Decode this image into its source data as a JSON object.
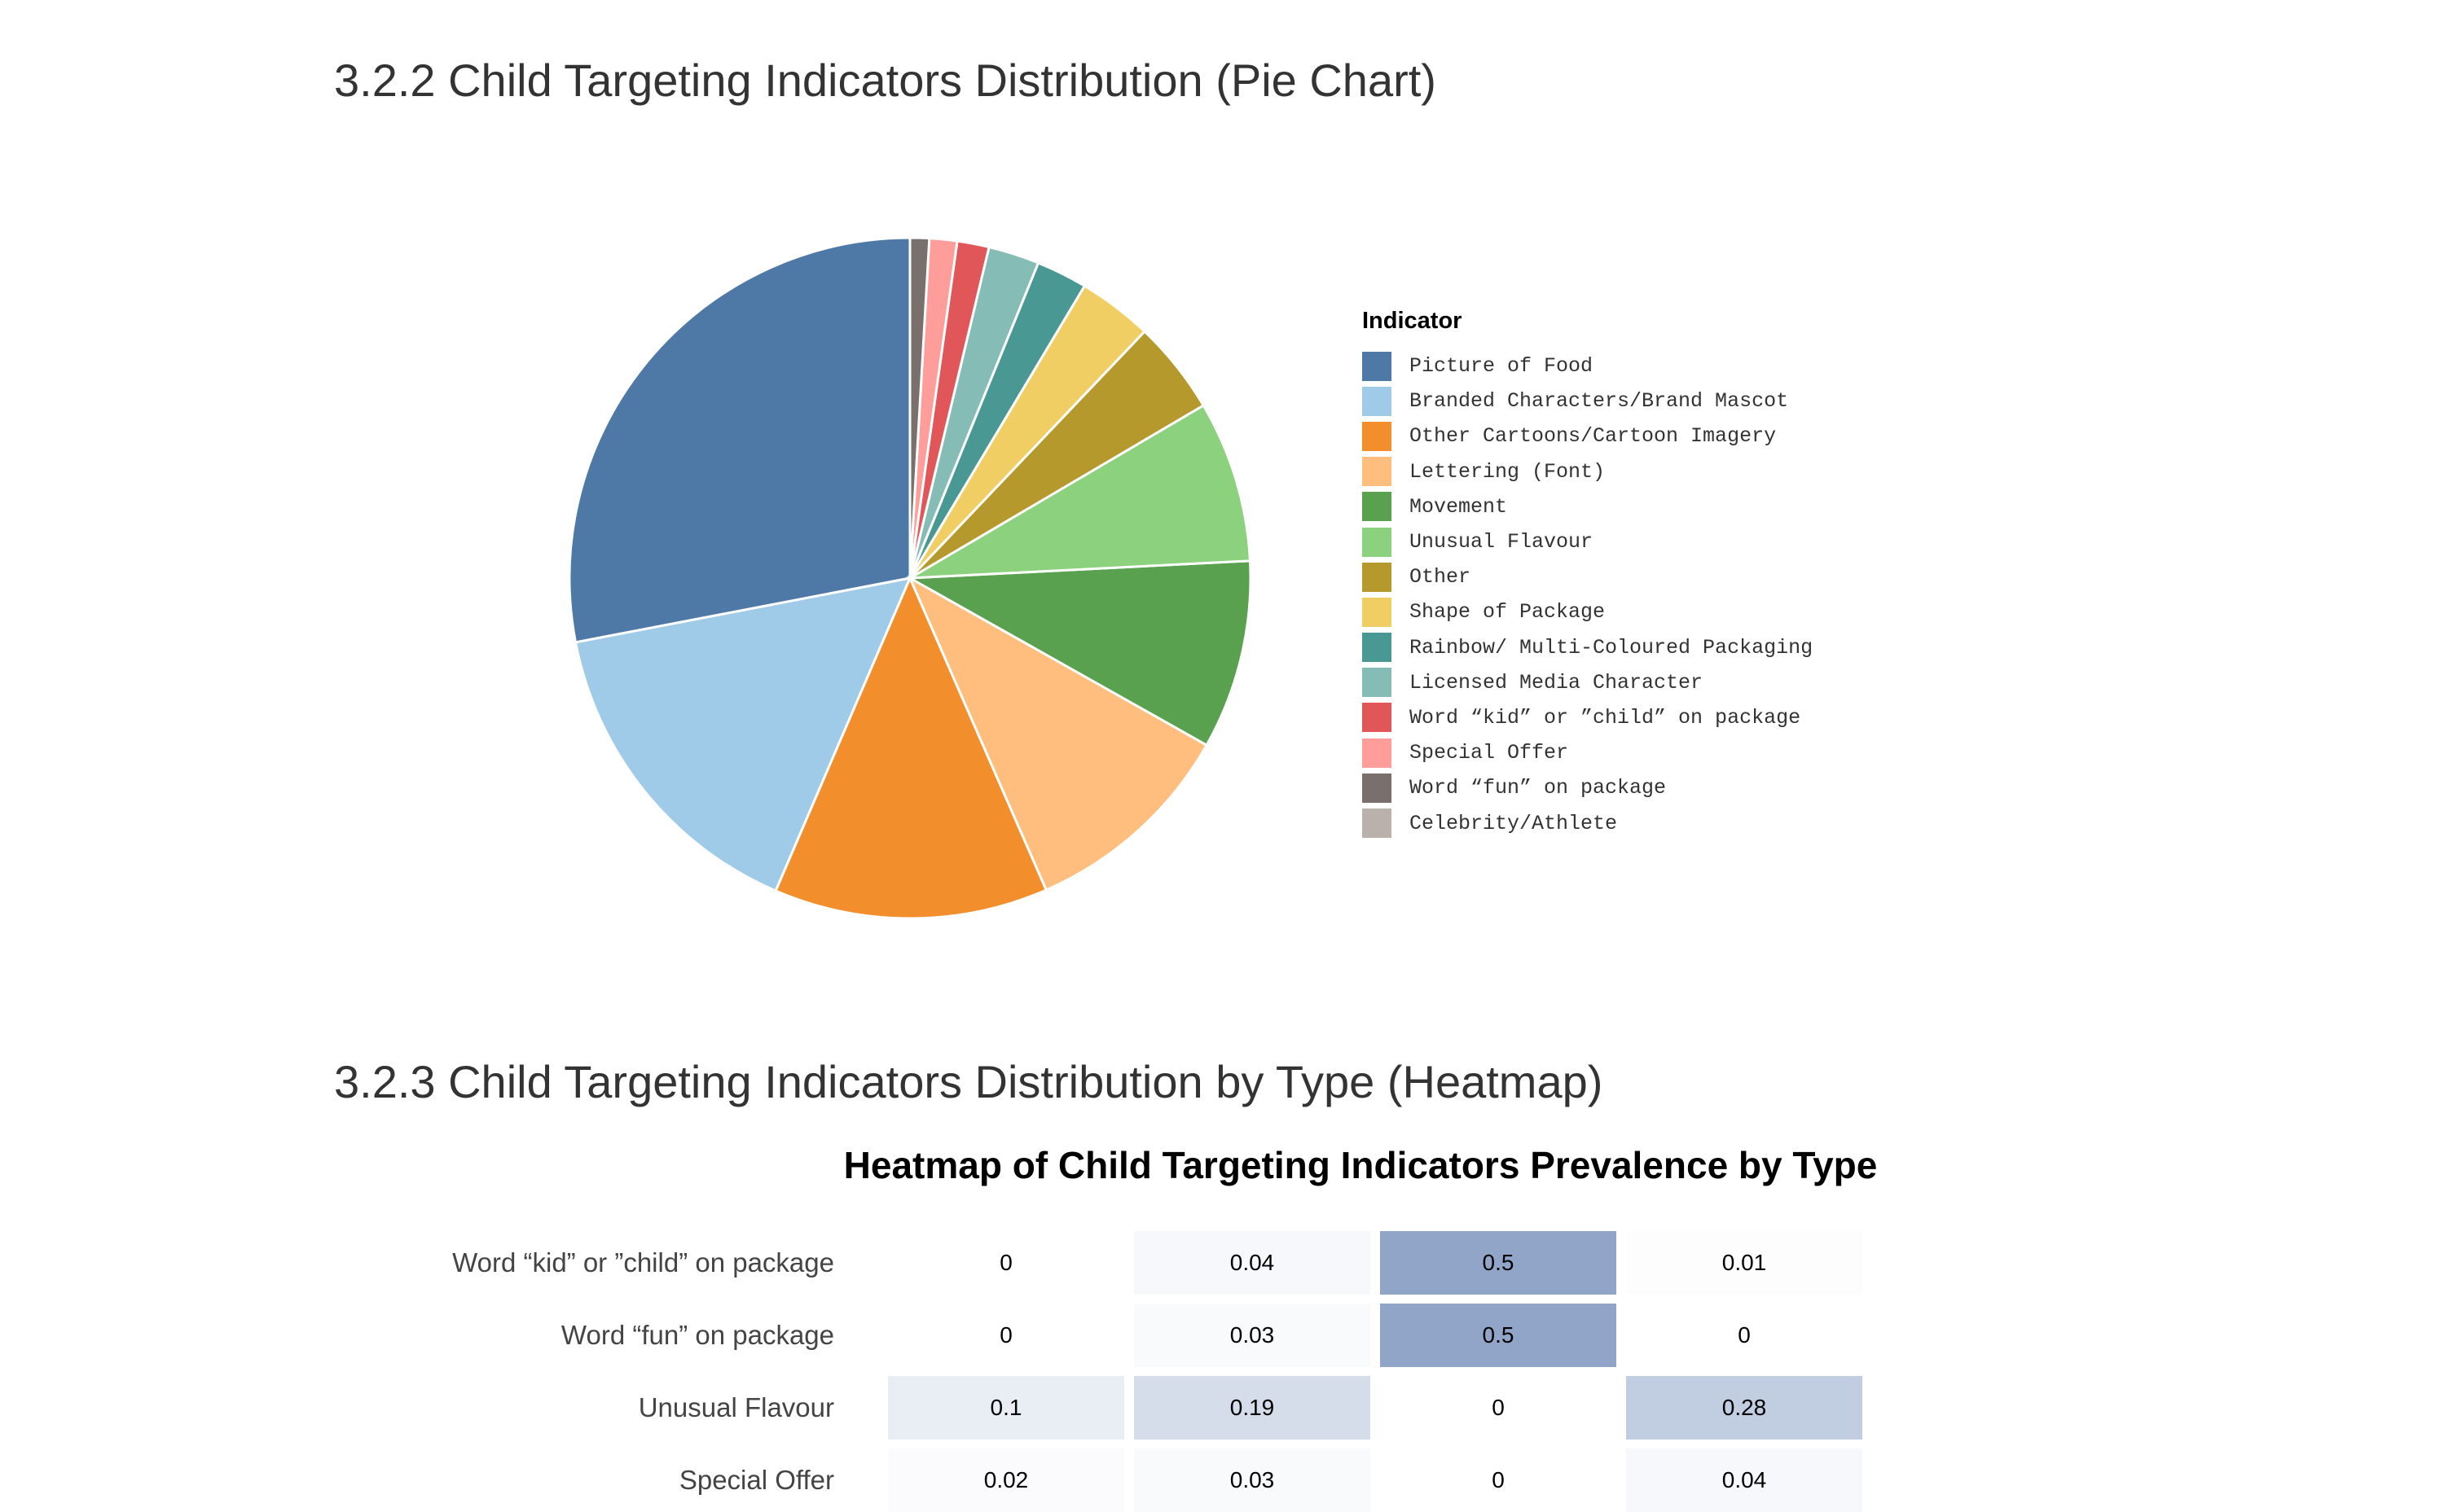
{
  "sections": {
    "pie_title": "3.2.2 Child Targeting Indicators Distribution (Pie Chart)",
    "heatmap_title": "3.2.3 Child Targeting Indicators Distribution by Type (Heatmap)"
  },
  "chart_data": [
    {
      "type": "pie",
      "title": "",
      "legend_title": "Indicator",
      "legend_position": "right",
      "slices": [
        {
          "label": "Picture of Food",
          "value": 27.8,
          "color": "#4E79A7"
        },
        {
          "label": "Branded Characters/Brand Mascot",
          "value": 15.4,
          "color": "#A0CBE8"
        },
        {
          "label": "Other Cartoons/Cartoon Imagery",
          "value": 12.9,
          "color": "#F28E2B"
        },
        {
          "label": "Lettering (Font)",
          "value": 10.2,
          "color": "#FFBE7D"
        },
        {
          "label": "Movement",
          "value": 8.9,
          "color": "#59A14F"
        },
        {
          "label": "Unusual Flavour",
          "value": 7.6,
          "color": "#8CD17D"
        },
        {
          "label": "Other",
          "value": 4.4,
          "color": "#B6992D"
        },
        {
          "label": "Shape of Package",
          "value": 3.5,
          "color": "#F1CE63"
        },
        {
          "label": "Rainbow/ Multi-Coloured Packaging",
          "value": 2.4,
          "color": "#499894"
        },
        {
          "label": "Licensed Media Character",
          "value": 2.4,
          "color": "#86BCB6"
        },
        {
          "label": "Word “kid” or ”child” on package",
          "value": 1.5,
          "color": "#E15759"
        },
        {
          "label": "Special Offer",
          "value": 1.3,
          "color": "#FF9D9A"
        },
        {
          "label": "Word “fun” on package",
          "value": 0.9,
          "color": "#79706E"
        },
        {
          "label": "Celebrity/Athlete",
          "value": 0.0,
          "color": "#BAB0AC"
        }
      ]
    },
    {
      "type": "heatmap",
      "title": "Heatmap of Child Targeting Indicators Prevalence by Type",
      "rows": [
        "Word “kid” or ”child” on package",
        "Word “fun” on package",
        "Unusual Flavour",
        "Special Offer"
      ],
      "values": [
        [
          "0",
          "0.04",
          "0.5",
          "0.01"
        ],
        [
          "0",
          "0.03",
          "0.5",
          "0"
        ],
        [
          "0.1",
          "0.19",
          "0",
          "0.28"
        ],
        [
          "0.02",
          "0.03",
          "0",
          "0.04"
        ]
      ],
      "color_low": "#ffffff",
      "color_high": "#4E6FA5",
      "zmax": 1.0
    }
  ]
}
